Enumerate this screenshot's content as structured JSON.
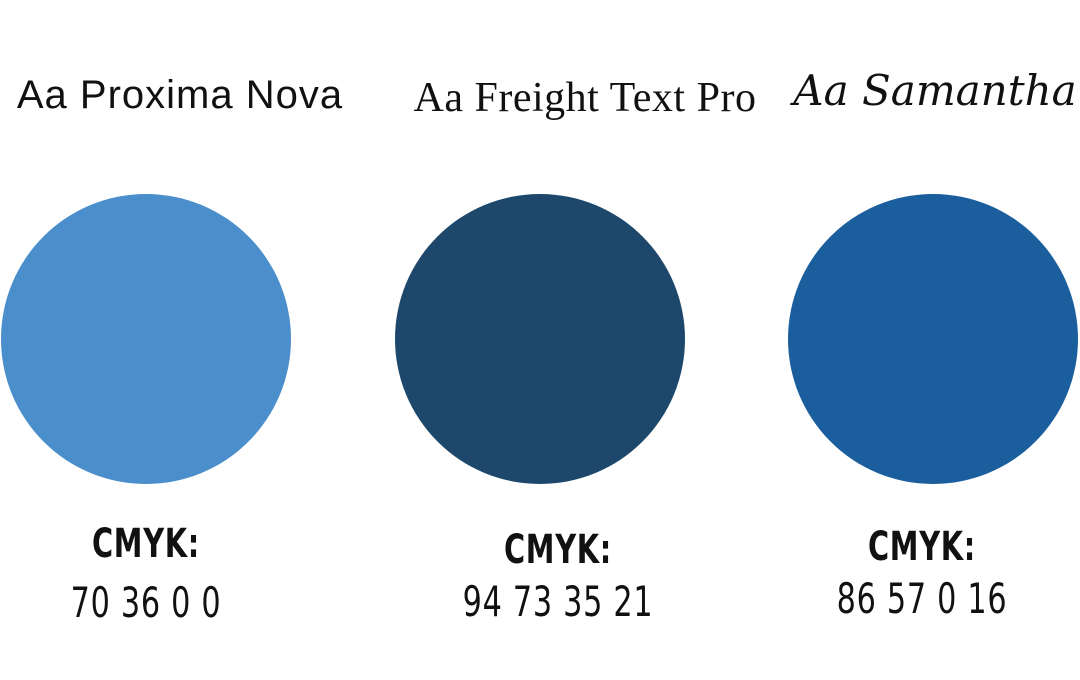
{
  "swatches": [
    {
      "font_name": "Aa Proxima Nova",
      "cmyk_label": "CMYK:",
      "cmyk_value": "70 36 0 0",
      "color": "#4A8ECB"
    },
    {
      "font_name": "Aa Freight Text Pro",
      "cmyk_label": "CMYK:",
      "cmyk_value": "94 73 35 21",
      "color": "#1D486B"
    },
    {
      "font_name": "Aa Samantha",
      "cmyk_label": "CMYK:",
      "cmyk_value": "86 57 0 16",
      "color": "#1B5E9D"
    }
  ]
}
